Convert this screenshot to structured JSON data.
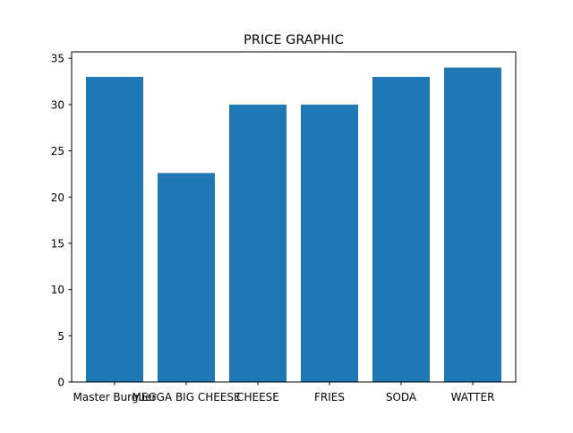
{
  "chart_data": {
    "type": "bar",
    "title": "PRICE GRAPHIC",
    "xlabel": "",
    "ylabel": "",
    "categories": [
      "Master Burguer",
      "MEGGA BIG CHEESE",
      "CHEESE",
      "FRIES",
      "SODA",
      "WATTER"
    ],
    "values": [
      33,
      22.6,
      30,
      30,
      33,
      34
    ],
    "ylim": [
      0,
      35.7
    ],
    "yticks": [
      0,
      5,
      10,
      15,
      20,
      25,
      30,
      35
    ],
    "bar_color": "#1f77b4",
    "grid": false,
    "legend": false
  }
}
